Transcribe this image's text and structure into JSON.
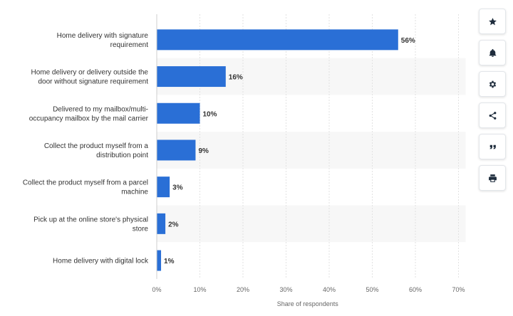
{
  "chart_data": {
    "type": "bar",
    "orientation": "horizontal",
    "categories": [
      [
        "Home delivery with signature",
        "requirement"
      ],
      [
        "Home delivery or delivery outside the",
        "door without signature requirement"
      ],
      [
        "Delivered to my mailbox/multi-",
        "occupancy mailbox by the mail carrier"
      ],
      [
        "Collect the product myself from a",
        "distribution point"
      ],
      [
        "Collect the product myself from a parcel",
        "machine"
      ],
      [
        "Pick up at the online store's physical",
        "store"
      ],
      [
        "Home delivery with digital lock"
      ]
    ],
    "values": [
      56,
      16,
      10,
      9,
      3,
      2,
      1
    ],
    "data_labels": [
      "56%",
      "16%",
      "10%",
      "9%",
      "3%",
      "2%",
      "1%"
    ],
    "xlim": [
      0,
      70
    ],
    "ticks": [
      0,
      10,
      20,
      30,
      40,
      50,
      60,
      70
    ],
    "tick_labels": [
      "0%",
      "10%",
      "20%",
      "30%",
      "40%",
      "50%",
      "60%",
      "70%"
    ],
    "xlabel": "Share of respondents",
    "bar_color": "#2a6fd6",
    "band_color": "#f7f7f7",
    "grid": true
  },
  "toolbar": {
    "icons": [
      "star-icon",
      "bell-icon",
      "gear-icon",
      "share-icon",
      "quote-icon",
      "print-icon"
    ]
  }
}
